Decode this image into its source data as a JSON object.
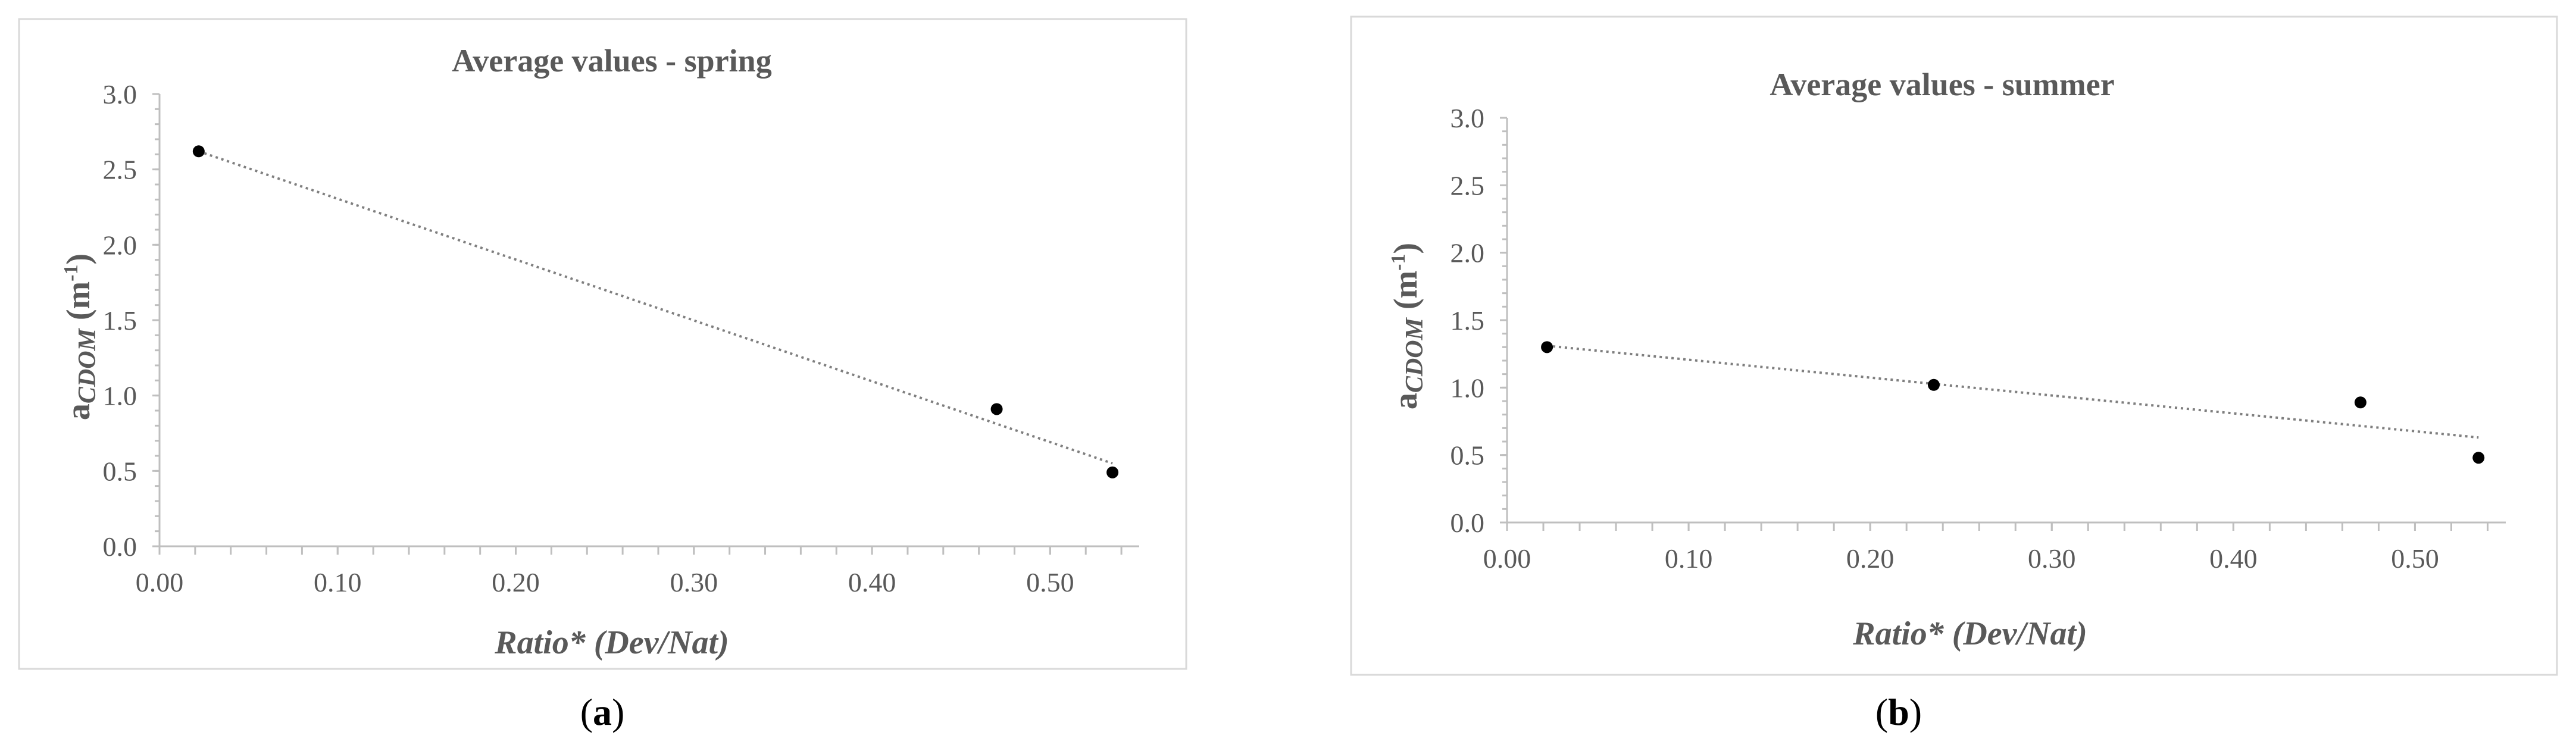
{
  "chart_data": [
    {
      "type": "scatter",
      "title": "Average values - spring",
      "xlabel": "Ratio* (Dev/Nat)",
      "ylabel": {
        "main": "a",
        "sub": "CDOM",
        "unit_open": " (m",
        "unit_sup": "-1",
        "unit_close": ")"
      },
      "xlim": [
        0.0,
        0.55
      ],
      "ylim": [
        0.0,
        3.0
      ],
      "xticks": [
        "0.00",
        "0.10",
        "0.20",
        "0.30",
        "0.40",
        "0.50"
      ],
      "yticks": [
        "0.0",
        "0.5",
        "1.0",
        "1.5",
        "2.0",
        "2.5",
        "3.0"
      ],
      "grid": false,
      "points": [
        {
          "x": 0.022,
          "y": 2.62
        },
        {
          "x": 0.47,
          "y": 0.91
        },
        {
          "x": 0.535,
          "y": 0.49
        }
      ],
      "trendline": {
        "type": "linear",
        "x": [
          0.022,
          0.535
        ],
        "y": [
          2.62,
          0.55
        ]
      },
      "caption": {
        "open": "(",
        "letter": "a",
        "close": ")"
      }
    },
    {
      "type": "scatter",
      "title": "Average values - summer",
      "xlabel": "Ratio* (Dev/Nat)",
      "ylabel": {
        "main": "a",
        "sub": "CDOM",
        "unit_open": " (m",
        "unit_sup": "-1",
        "unit_close": ")"
      },
      "xlim": [
        0.0,
        0.55
      ],
      "ylim": [
        0.0,
        3.0
      ],
      "xticks": [
        "0.00",
        "0.10",
        "0.20",
        "0.30",
        "0.40",
        "0.50"
      ],
      "yticks": [
        "0.0",
        "0.5",
        "1.0",
        "1.5",
        "2.0",
        "2.5",
        "3.0"
      ],
      "grid": false,
      "points": [
        {
          "x": 0.022,
          "y": 1.3
        },
        {
          "x": 0.235,
          "y": 1.02
        },
        {
          "x": 0.47,
          "y": 0.89
        },
        {
          "x": 0.535,
          "y": 0.48
        }
      ],
      "trendline": {
        "type": "linear",
        "x": [
          0.022,
          0.535
        ],
        "y": [
          1.31,
          0.63
        ]
      },
      "caption": {
        "open": "(",
        "letter": "b",
        "close": ")"
      }
    }
  ]
}
